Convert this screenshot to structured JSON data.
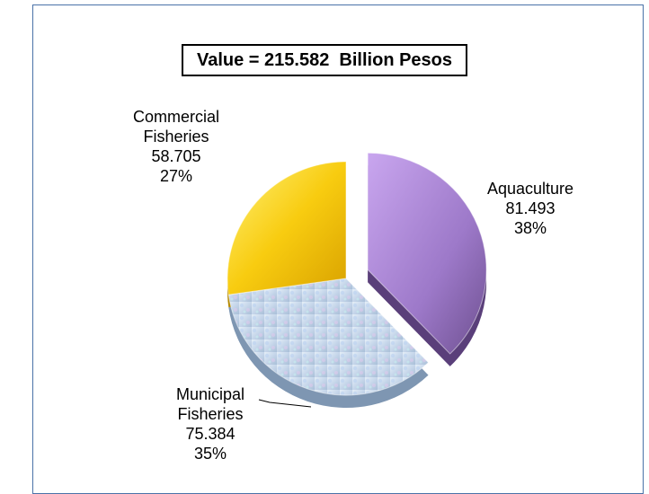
{
  "chart_data": {
    "type": "pie",
    "title": "Value = 215.582  Billion Pesos",
    "slices": [
      {
        "name_lines": [
          "Aquaculture"
        ],
        "value": "81.493",
        "percent": "38%",
        "color": "#a07ad0"
      },
      {
        "name_lines": [
          "Municipal",
          "Fisheries"
        ],
        "value": "75.384",
        "percent": "35%",
        "color": "#c9dbe8"
      },
      {
        "name_lines": [
          "Commercial",
          "Fisheries"
        ],
        "value": "58.705",
        "percent": "27%",
        "color": "#f3c60c"
      }
    ],
    "exploded": "Aquaculture",
    "legend": "none",
    "style": "3d-exploded"
  }
}
